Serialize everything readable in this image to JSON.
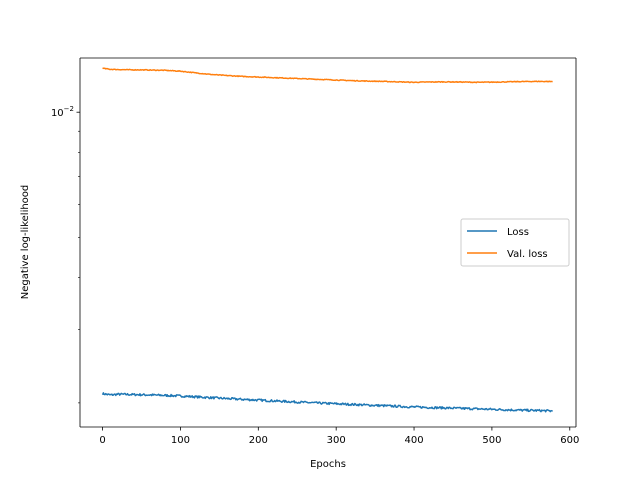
{
  "chart_data": {
    "type": "line",
    "xlabel": "Epochs",
    "ylabel": "Negative log-likelihood",
    "xlim": [
      -29,
      608
    ],
    "ylim": [
      0.00175,
      0.0135
    ],
    "yscale": "log",
    "grid": false,
    "legend_position": "center-right",
    "x_ticks": [
      0,
      100,
      200,
      300,
      400,
      500,
      600
    ],
    "x_tick_labels": [
      "0",
      "100",
      "200",
      "300",
      "400",
      "500",
      "600"
    ],
    "y_major_ticks": [
      {
        "value": 0.01,
        "base": "10",
        "exponent": "−2"
      }
    ],
    "y_minor_ticks": [
      0.002,
      0.003,
      0.004,
      0.005,
      0.006,
      0.007,
      0.008,
      0.009
    ],
    "colors": {
      "loss": "#1f77b4",
      "val_loss": "#ff7f0e"
    },
    "series": [
      {
        "name": "Loss",
        "key": "loss",
        "x": [
          0,
          10,
          20,
          40,
          60,
          80,
          100,
          120,
          140,
          160,
          180,
          200,
          220,
          240,
          260,
          280,
          300,
          320,
          340,
          360,
          380,
          400,
          420,
          440,
          460,
          480,
          500,
          520,
          540,
          560,
          578
        ],
        "y": [
          0.002105,
          0.00209,
          0.002098,
          0.002094,
          0.00209,
          0.002085,
          0.002078,
          0.002068,
          0.002058,
          0.002048,
          0.002039,
          0.002031,
          0.002022,
          0.002014,
          0.002005,
          0.001997,
          0.00199,
          0.001983,
          0.001976,
          0.001969,
          0.001962,
          0.001955,
          0.00195,
          0.001945,
          0.00194,
          0.001935,
          0.00193,
          0.001925,
          0.00192,
          0.001917,
          0.001912
        ],
        "noise": 0.006
      },
      {
        "name": "Val. loss",
        "key": "val_loss",
        "x": [
          0,
          10,
          30,
          50,
          80,
          100,
          120,
          140,
          160,
          180,
          200,
          220,
          240,
          260,
          280,
          300,
          320,
          340,
          360,
          380,
          400,
          420,
          440,
          460,
          480,
          500,
          520,
          540,
          560,
          578
        ],
        "y": [
          0.01275,
          0.01268,
          0.01265,
          0.01264,
          0.01261,
          0.01255,
          0.01243,
          0.01232,
          0.01225,
          0.01219,
          0.01215,
          0.01211,
          0.01207,
          0.01203,
          0.01199,
          0.01195,
          0.01191,
          0.01188,
          0.01186,
          0.01183,
          0.0118,
          0.01182,
          0.01183,
          0.01182,
          0.0118,
          0.01181,
          0.01183,
          0.01185,
          0.01186,
          0.01185
        ],
        "noise": 0.002
      }
    ]
  }
}
